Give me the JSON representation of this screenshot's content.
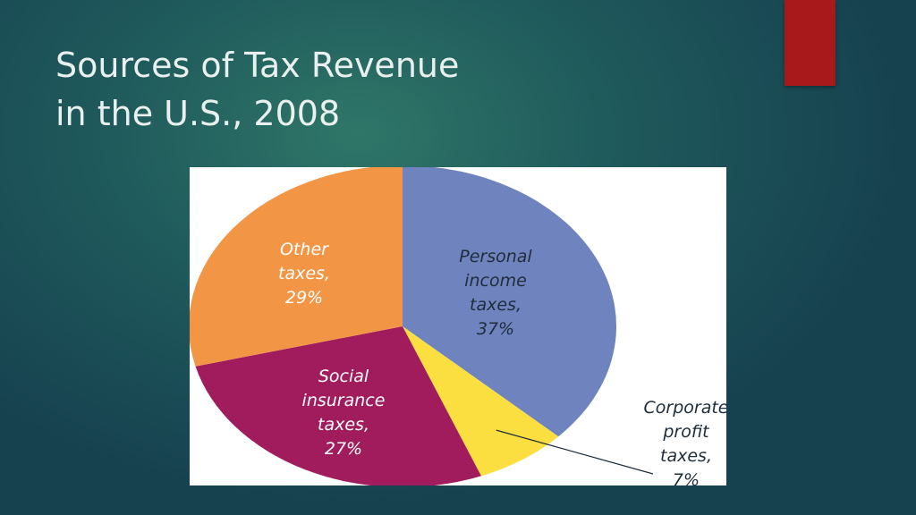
{
  "slide": {
    "title_line1": "Sources of Tax Revenue",
    "title_line2": "in the U.S., 2008",
    "accent_color": "#a8191b"
  },
  "chart_data": {
    "type": "pie",
    "title": "",
    "slices": [
      {
        "key": "personal",
        "lines": [
          "Personal",
          "income",
          "taxes,",
          "37%"
        ],
        "value": 37,
        "color": "#6f84bf"
      },
      {
        "key": "corporate",
        "lines": [
          "Corporate",
          "profit",
          "taxes,",
          "7%"
        ],
        "value": 7,
        "color": "#fbde3f"
      },
      {
        "key": "social",
        "lines": [
          "Social",
          "insurance",
          "taxes,",
          "27%"
        ],
        "value": 27,
        "color": "#a11c5c"
      },
      {
        "key": "other",
        "lines": [
          "Other",
          "taxes,",
          "29%"
        ],
        "value": 29,
        "color": "#f29646"
      }
    ],
    "start_angle_deg": 0,
    "direction": "clockwise",
    "label_position": "corporate label outside right with leader line"
  }
}
